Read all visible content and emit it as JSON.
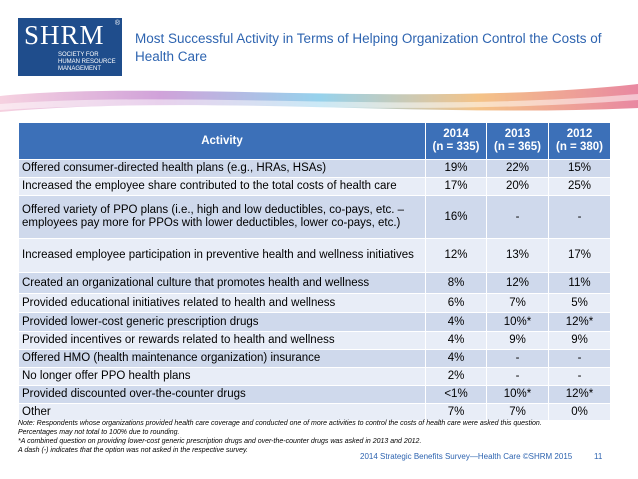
{
  "logo": {
    "mark": "SHRM",
    "registered": "®",
    "tagline": "SOCIETY FOR HUMAN RESOURCE MANAGEMENT"
  },
  "header": {
    "title": "Most Successful Activity in Terms of Helping Organization Control the Costs of Health Care"
  },
  "table": {
    "columns": [
      {
        "label": "Activity"
      },
      {
        "label": "2014",
        "sample": "(n = 335)"
      },
      {
        "label": "2013",
        "sample": "(n = 365)"
      },
      {
        "label": "2012",
        "sample": "(n = 380)"
      }
    ],
    "rows": [
      [
        "Offered consumer-directed health plans (e.g., HRAs, HSAs)",
        "19%",
        "22%",
        "15%"
      ],
      [
        "Increased the employee share contributed to the total costs of health care",
        "17%",
        "20%",
        "25%"
      ],
      [
        "Offered variety of PPO plans (i.e., high and low deductibles, co-pays, etc. – employees pay more for PPOs with lower deductibles, lower co-pays, etc.)",
        "16%",
        "-",
        "-"
      ],
      [
        "Increased employee participation in preventive health and wellness initiatives",
        "12%",
        "13%",
        "17%"
      ],
      [
        "Created an organizational culture that promotes health and wellness",
        "8%",
        "12%",
        "11%"
      ],
      [
        "Provided educational initiatives related to health and wellness",
        "6%",
        "7%",
        "5%"
      ],
      [
        "Provided lower-cost generic prescription drugs",
        "4%",
        "10%*",
        "12%*"
      ],
      [
        "Provided incentives or rewards related to health and wellness",
        "4%",
        "9%",
        "9%"
      ],
      [
        "Offered HMO (health maintenance organization) insurance",
        "4%",
        "-",
        "-"
      ],
      [
        "No longer offer PPO health plans",
        "2%",
        "-",
        "-"
      ],
      [
        "Provided discounted over-the-counter drugs",
        "<1%",
        "10%*",
        "12%*"
      ],
      [
        "Other",
        "7%",
        "7%",
        "0%"
      ]
    ]
  },
  "notes": [
    "Note: Respondents whose organizations provided health care coverage and conducted one of more activities to control the costs of health care were asked this question. Percentages may not total to 100% due to rounding.",
    "*A combined question on providing lower-cost generic prescription drugs and over-the-counter drugs was asked in 2013 and 2012.",
    "A dash (-) indicates that the option was not asked in the respective survey."
  ],
  "footer": {
    "source": "2014 Strategic Benefits Survey—Health Care ©SHRM 2015",
    "page": "11"
  }
}
